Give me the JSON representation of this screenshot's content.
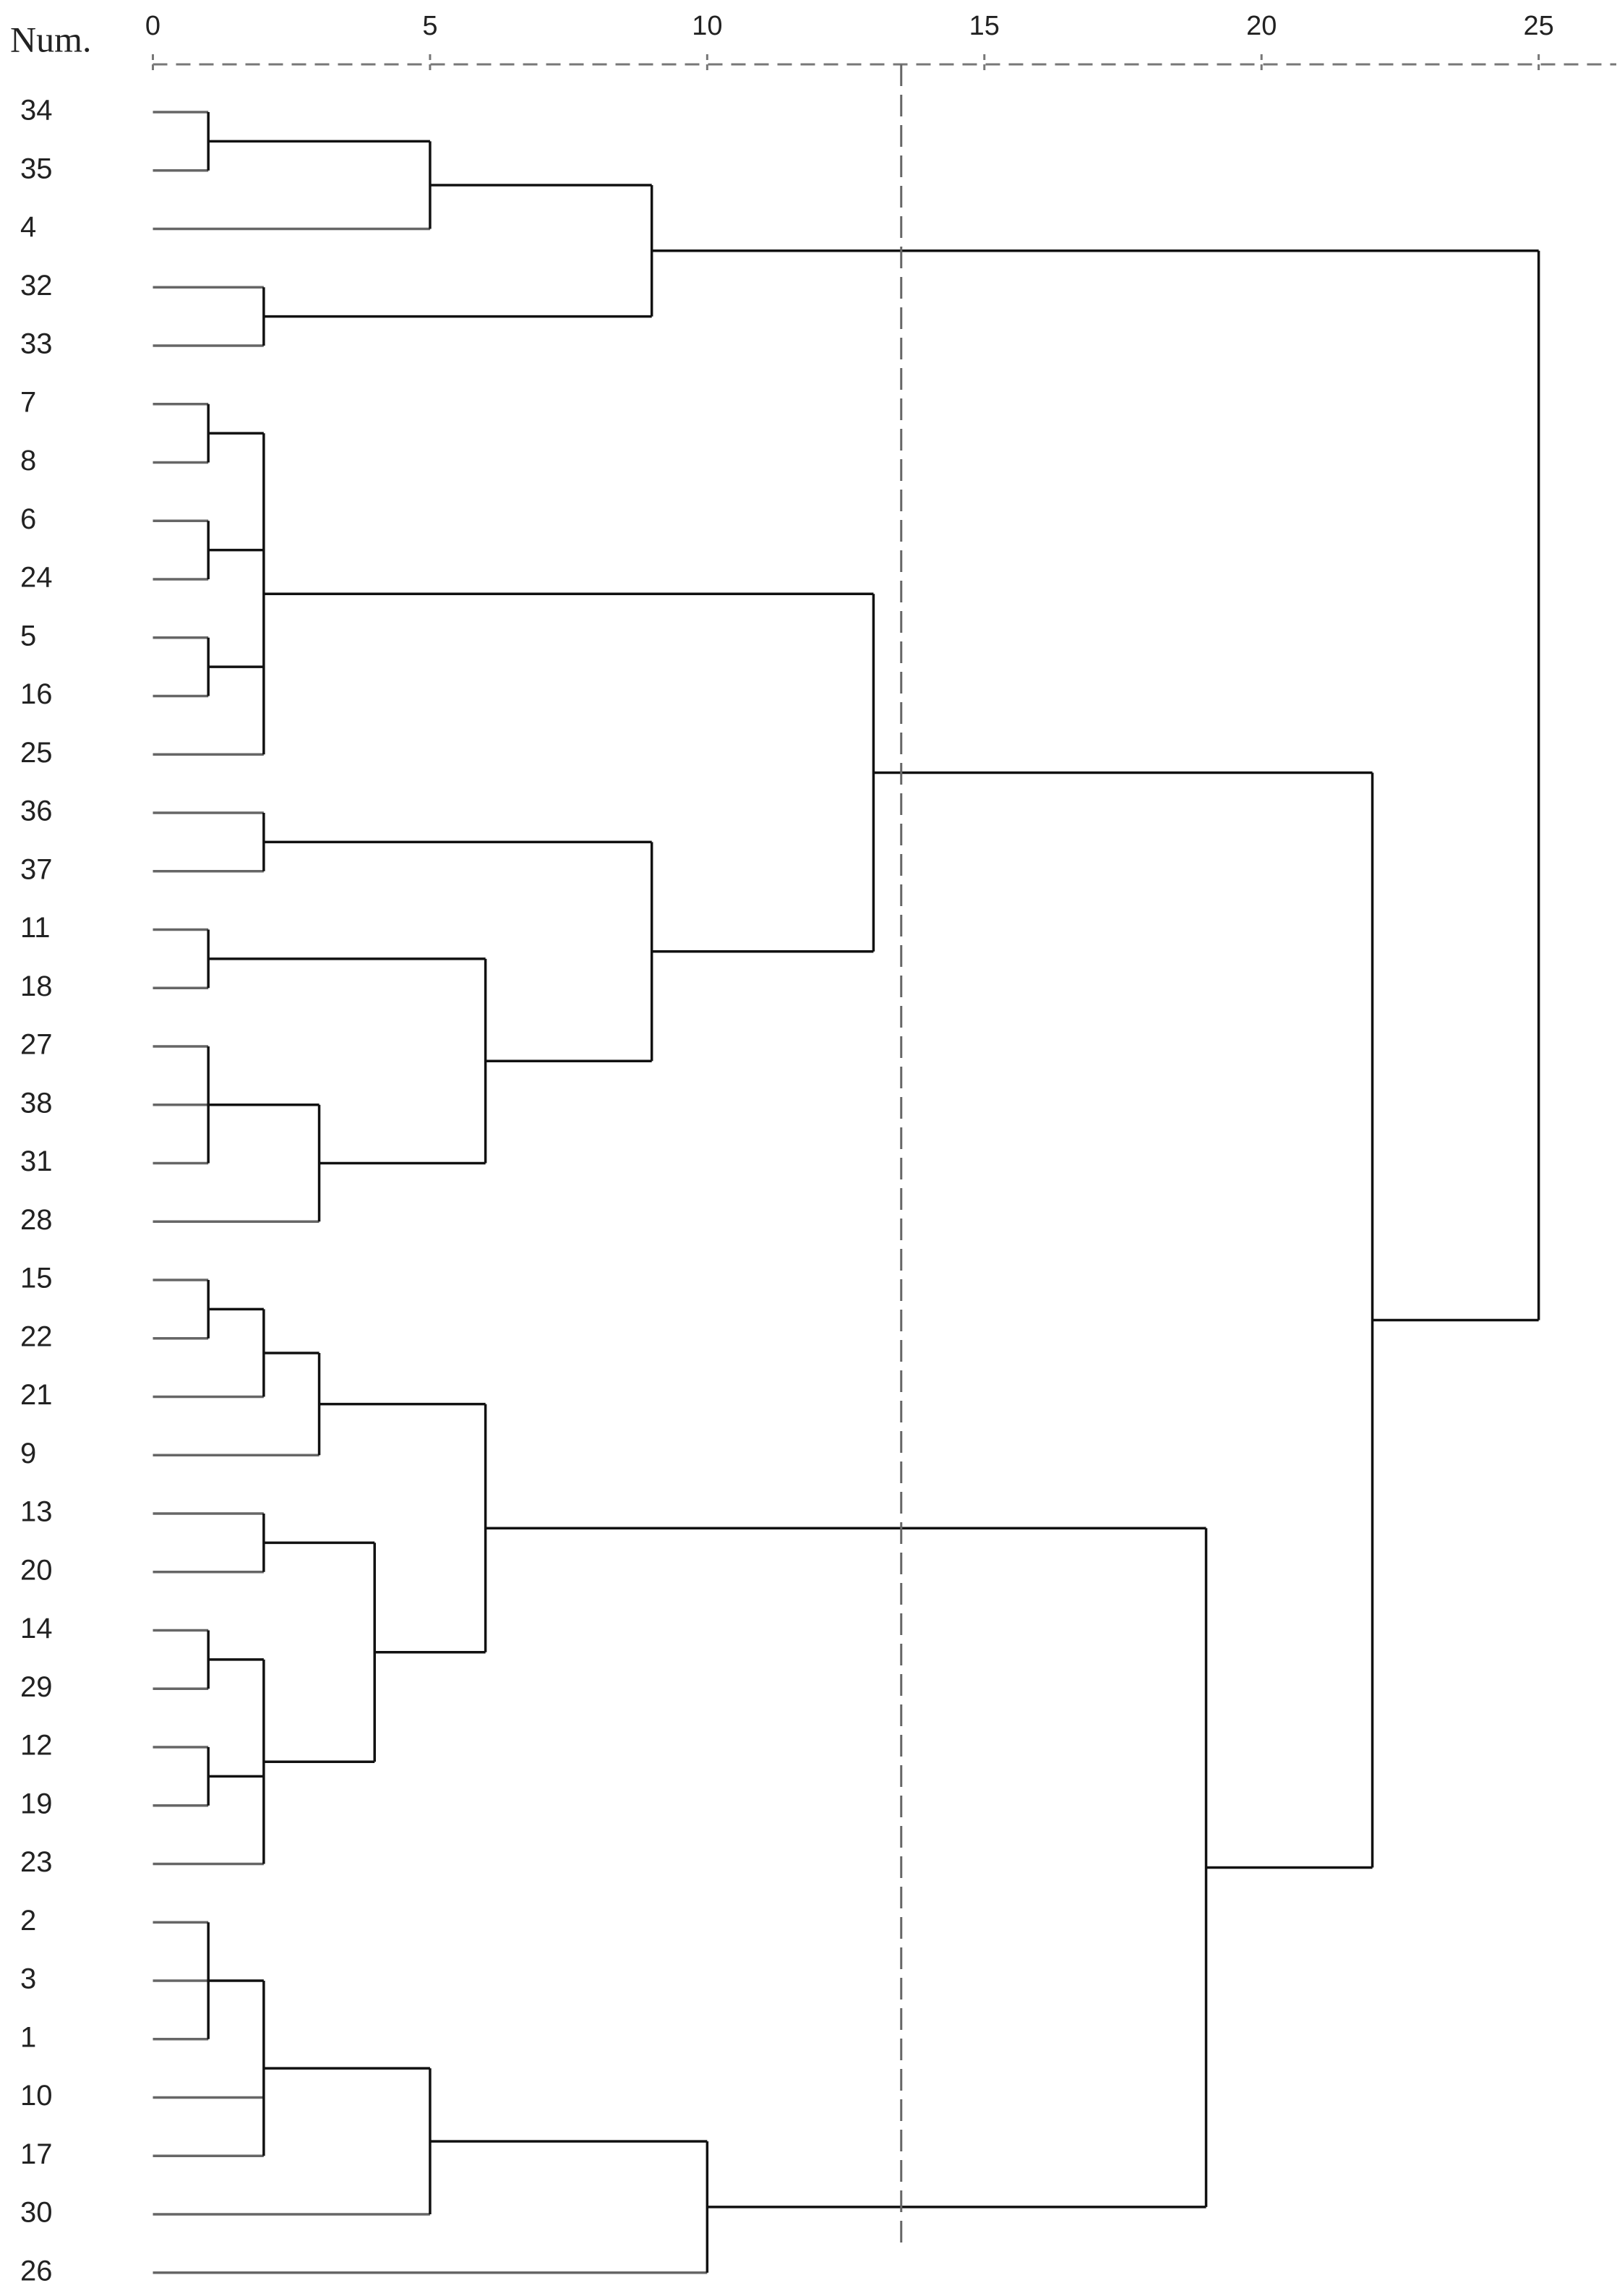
{
  "chart_data": {
    "type": "dendrogram",
    "axis_label": "Num.",
    "xlim": [
      0,
      26.4
    ],
    "xticks": [
      0,
      5,
      10,
      15,
      20,
      25
    ],
    "cut": 13.5,
    "tree": {
      "height": 25,
      "children": [
        {
          "height": 9,
          "children": [
            {
              "height": 5,
              "children": [
                {
                  "height": 1,
                  "children": [
                    {
                      "label": "34"
                    },
                    {
                      "label": "35"
                    }
                  ]
                },
                {
                  "label": "4"
                }
              ]
            },
            {
              "height": 2,
              "children": [
                {
                  "label": "32"
                },
                {
                  "label": "33"
                }
              ]
            }
          ]
        },
        {
          "height": 22,
          "children": [
            {
              "height": 13,
              "children": [
                {
                  "height": 2,
                  "children": [
                    {
                      "height": 1,
                      "children": [
                        {
                          "label": "7"
                        },
                        {
                          "label": "8"
                        }
                      ]
                    },
                    {
                      "height": 1,
                      "children": [
                        {
                          "label": "6"
                        },
                        {
                          "label": "24"
                        }
                      ]
                    },
                    {
                      "height": 1,
                      "children": [
                        {
                          "label": "5"
                        },
                        {
                          "label": "16"
                        }
                      ]
                    },
                    {
                      "label": "25"
                    }
                  ]
                },
                {
                  "height": 9,
                  "children": [
                    {
                      "height": 2,
                      "children": [
                        {
                          "label": "36"
                        },
                        {
                          "label": "37"
                        }
                      ]
                    },
                    {
                      "height": 6,
                      "children": [
                        {
                          "height": 1,
                          "children": [
                            {
                              "label": "11"
                            },
                            {
                              "label": "18"
                            }
                          ]
                        },
                        {
                          "height": 3,
                          "children": [
                            {
                              "height": 1,
                              "children": [
                                {
                                  "label": "27"
                                },
                                {
                                  "label": "38"
                                },
                                {
                                  "label": "31"
                                }
                              ]
                            },
                            {
                              "label": "28"
                            }
                          ]
                        }
                      ]
                    }
                  ]
                }
              ]
            },
            {
              "height": 19,
              "children": [
                {
                  "height": 6,
                  "children": [
                    {
                      "height": 3,
                      "children": [
                        {
                          "height": 2,
                          "children": [
                            {
                              "height": 1,
                              "children": [
                                {
                                  "label": "15"
                                },
                                {
                                  "label": "22"
                                }
                              ]
                            },
                            {
                              "label": "21"
                            }
                          ]
                        },
                        {
                          "label": "9"
                        }
                      ]
                    },
                    {
                      "height": 4,
                      "children": [
                        {
                          "height": 2,
                          "children": [
                            {
                              "label": "13"
                            },
                            {
                              "label": "20"
                            }
                          ]
                        },
                        {
                          "height": 2,
                          "children": [
                            {
                              "height": 1,
                              "children": [
                                {
                                  "label": "14"
                                },
                                {
                                  "label": "29"
                                }
                              ]
                            },
                            {
                              "height": 1,
                              "children": [
                                {
                                  "label": "12"
                                },
                                {
                                  "label": "19"
                                }
                              ]
                            },
                            {
                              "label": "23"
                            }
                          ]
                        }
                      ]
                    }
                  ]
                },
                {
                  "height": 10,
                  "children": [
                    {
                      "height": 5,
                      "children": [
                        {
                          "height": 2,
                          "children": [
                            {
                              "height": 1,
                              "children": [
                                {
                                  "label": "2"
                                },
                                {
                                  "label": "3"
                                },
                                {
                                  "label": "1"
                                }
                              ]
                            },
                            {
                              "label": "10"
                            },
                            {
                              "label": "17"
                            }
                          ]
                        },
                        {
                          "label": "30"
                        }
                      ]
                    },
                    {
                      "label": "26"
                    }
                  ]
                }
              ]
            }
          ]
        }
      ]
    }
  }
}
